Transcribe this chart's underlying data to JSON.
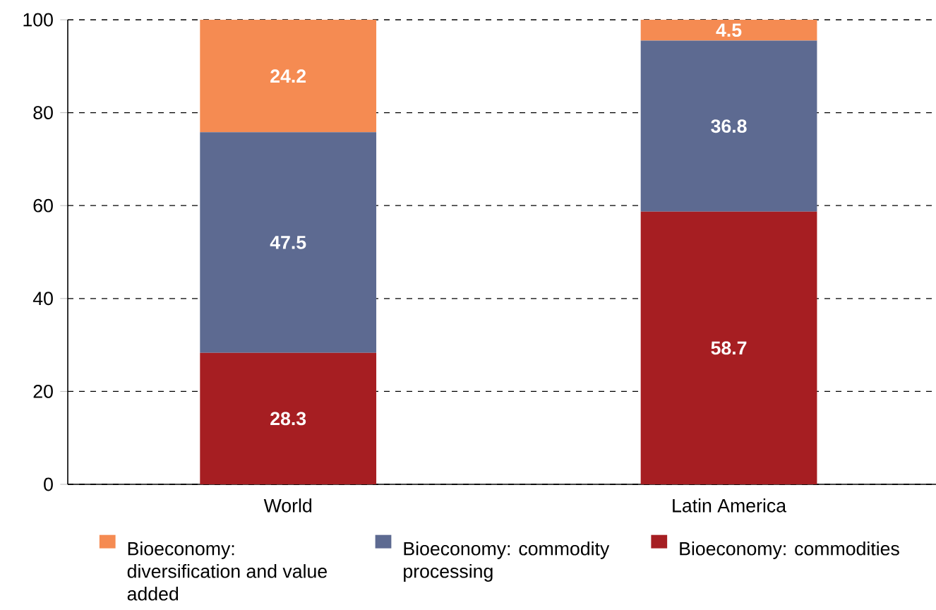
{
  "chart_data": {
    "type": "bar",
    "stacked": true,
    "categories": [
      "World",
      "Latin America"
    ],
    "series": [
      {
        "name": "Bioeconomy: commodities",
        "color": "#a61e22",
        "values": [
          28.3,
          58.7
        ]
      },
      {
        "name": "Bioeconomy: commodity processing",
        "color": "#5d6a91",
        "values": [
          47.5,
          36.8
        ]
      },
      {
        "name": "Bioeconomy: diversification and value added",
        "color": "#f58b52",
        "values": [
          24.2,
          4.5
        ]
      }
    ],
    "ylim": [
      0,
      100
    ],
    "yticks": [
      0,
      20,
      40,
      60,
      80,
      100
    ],
    "grid": "y",
    "legend": "bottom",
    "data_labels": true
  }
}
